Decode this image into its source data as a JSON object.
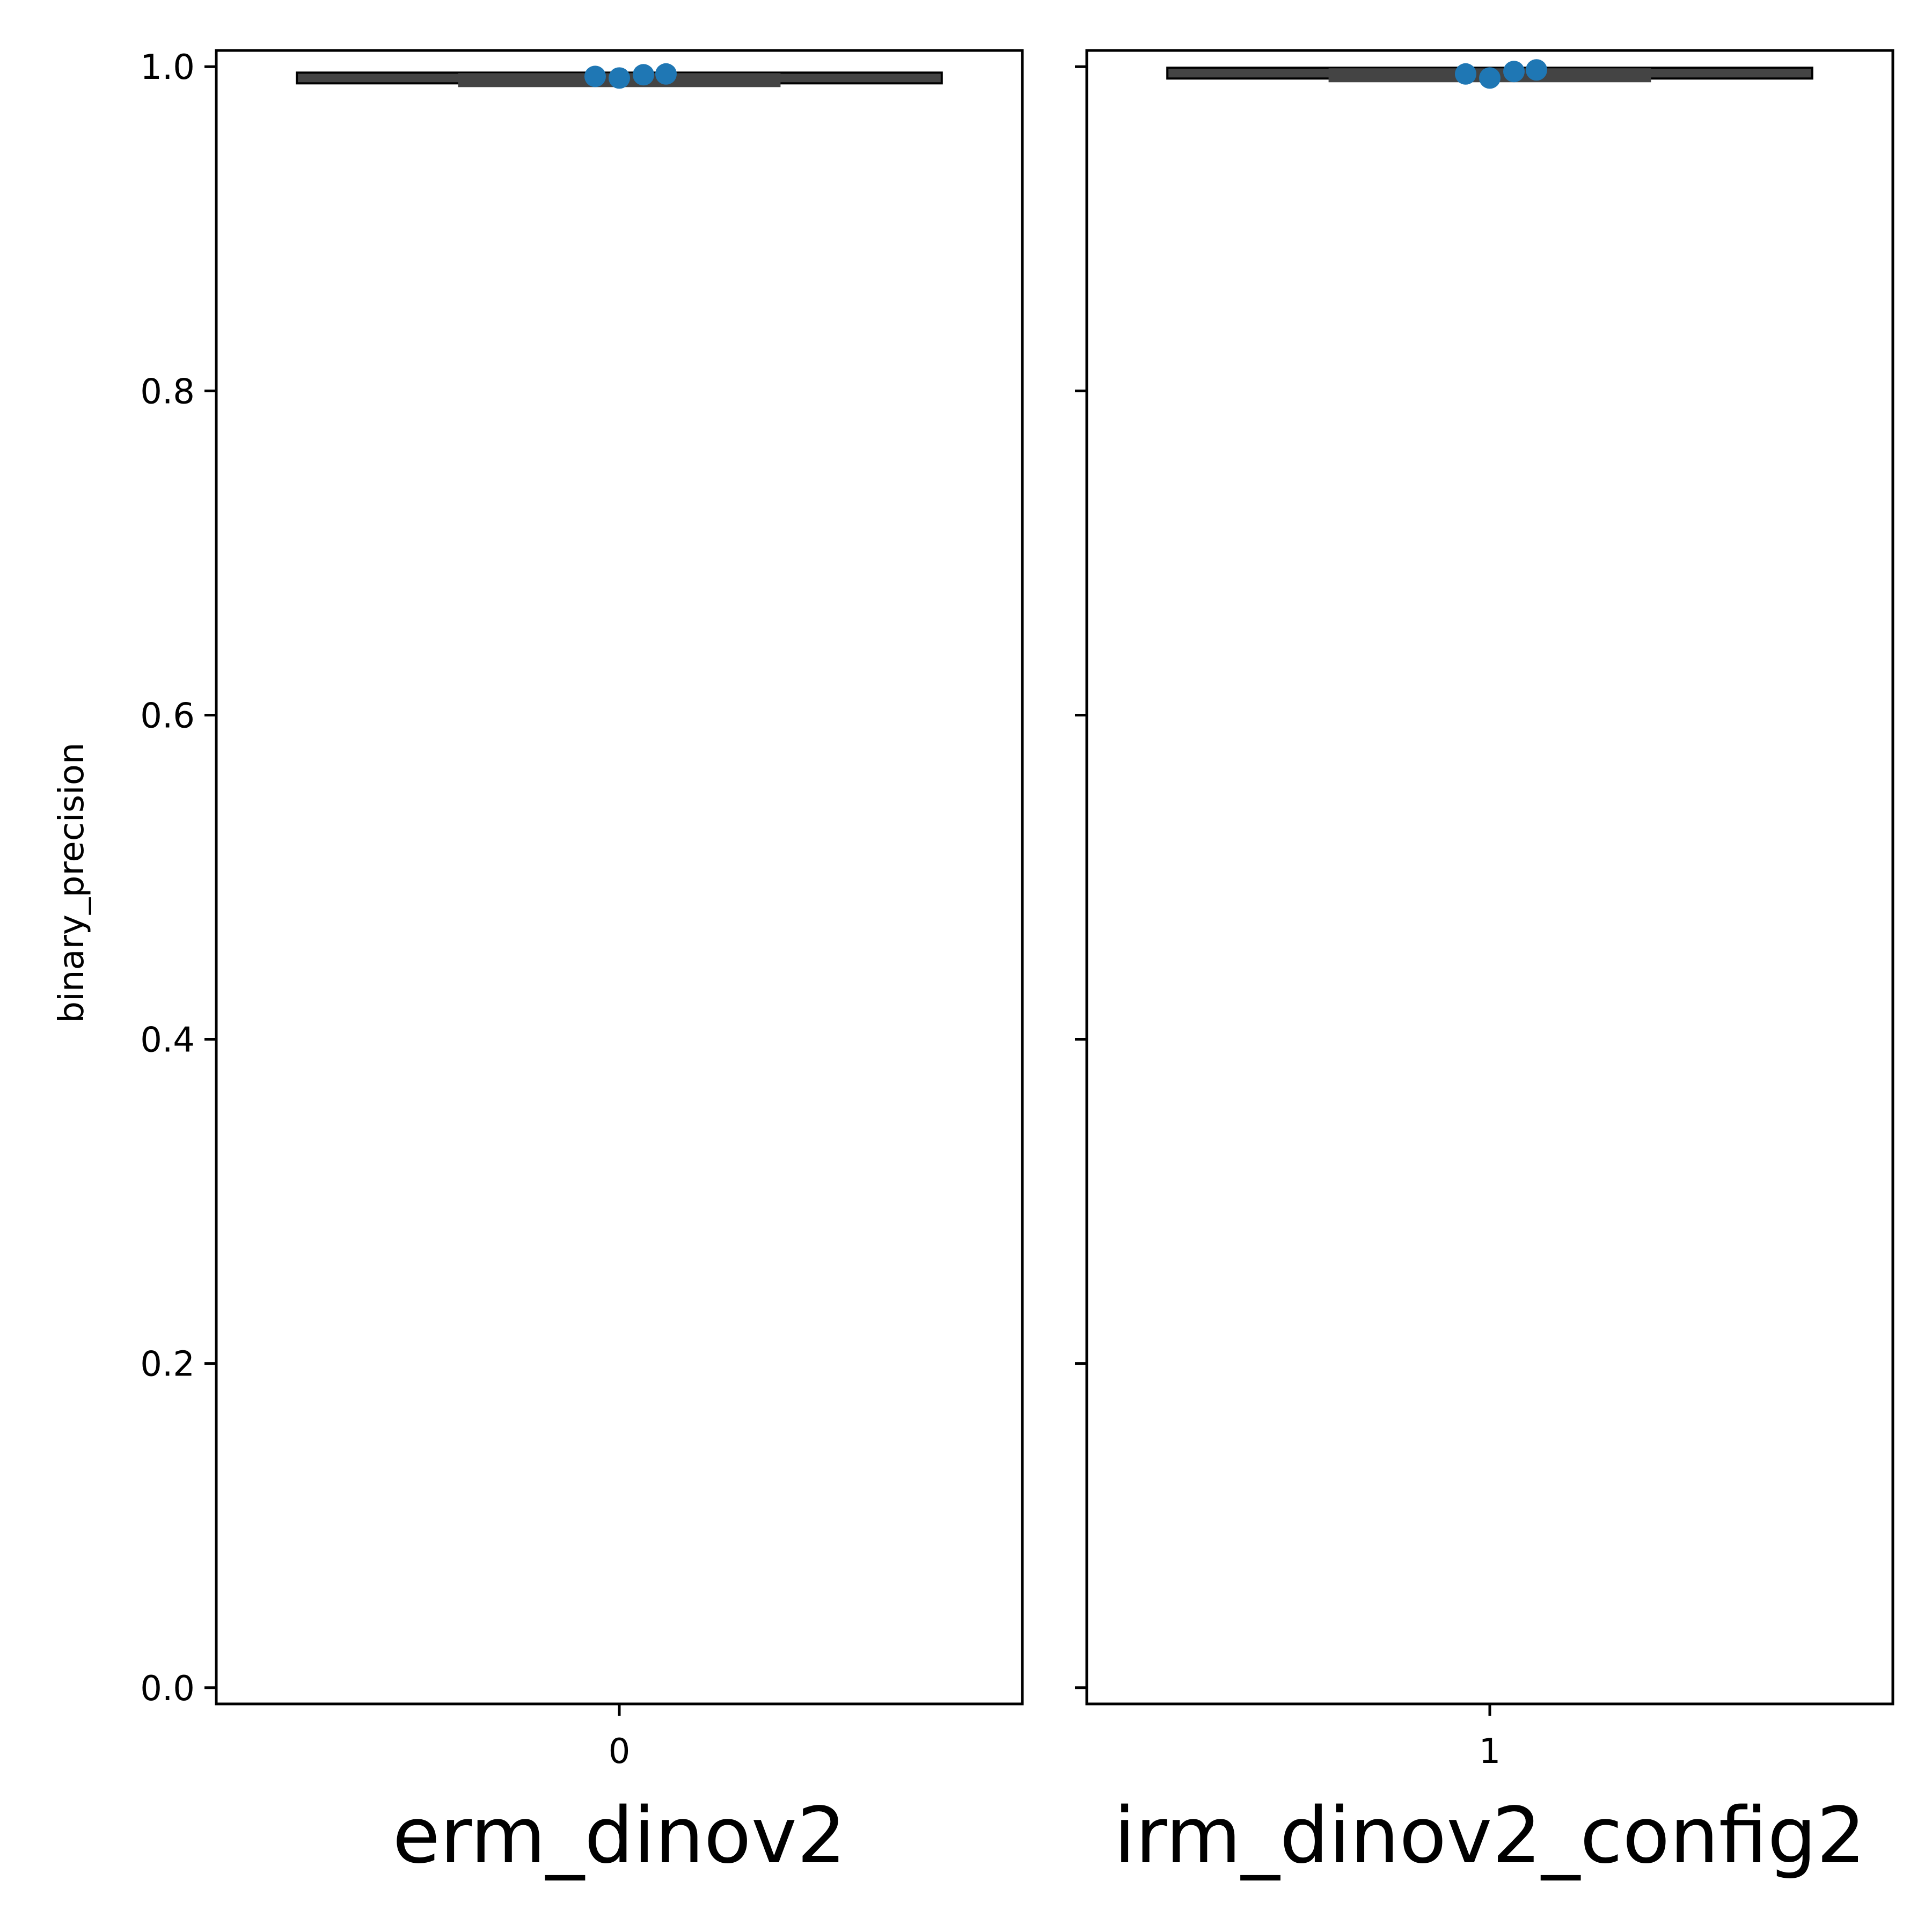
{
  "chart_data": {
    "type": "box",
    "ylabel": "binary_precision",
    "ylim": [
      -0.01,
      1.01
    ],
    "yticks": [
      0.0,
      0.2,
      0.4,
      0.6,
      0.8,
      1.0
    ],
    "ytick_labels": [
      "0.0",
      "0.2",
      "0.4",
      "0.6",
      "0.8",
      "1.0"
    ],
    "grid": false,
    "colors": {
      "box": "#444444",
      "points": "#1f77b4",
      "axes": "#000000"
    },
    "panels": [
      {
        "xtick_label": "0",
        "model": "erm_dinov2",
        "box": {
          "whisker_low": 0.992,
          "q1": 0.993,
          "median": 0.9935,
          "q3": 0.994,
          "whisker_high": 0.995
        },
        "points": [
          0.994,
          0.993,
          0.995,
          0.9955
        ]
      },
      {
        "xtick_label": "1",
        "model": "irm_dinov2_config2",
        "box": {
          "whisker_low": 0.994,
          "q1": 0.9945,
          "median": 0.996,
          "q3": 0.997,
          "whisker_high": 0.998
        },
        "points": [
          0.9955,
          0.993,
          0.997,
          0.998
        ]
      }
    ]
  }
}
